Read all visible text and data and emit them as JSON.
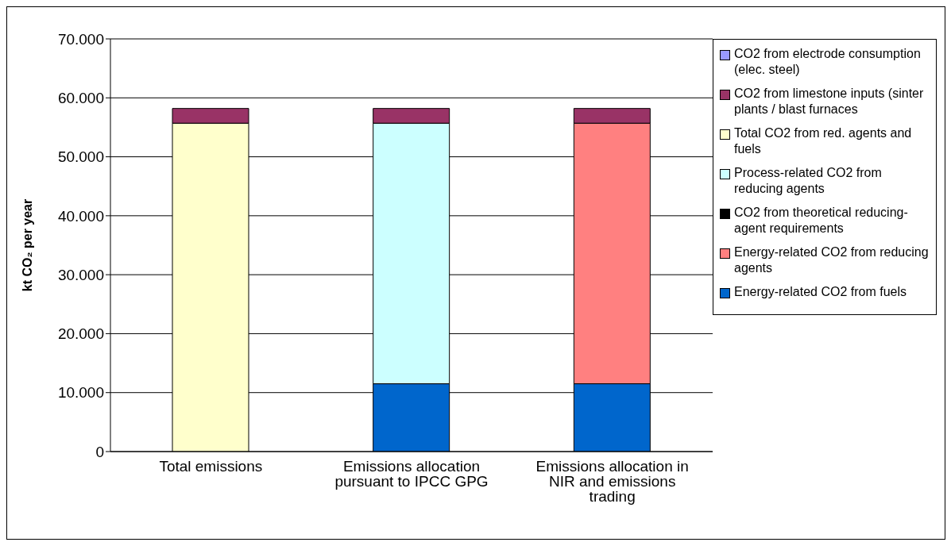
{
  "chart_data": {
    "type": "bar",
    "stacked": true,
    "ylabel": "kt CO₂  per year",
    "categories": [
      "Total emissions",
      "Emissions allocation pursuant to IPCC GPG",
      "Emissions allocation in NIR and emissions trading"
    ],
    "series": [
      {
        "name": "Energy-related CO2 from fuels",
        "color": "#0066cc",
        "values": [
          null,
          11500,
          11500
        ]
      },
      {
        "name": "Energy-related CO2 from reducing agents",
        "color": "#ff8080",
        "values": [
          null,
          null,
          44200
        ]
      },
      {
        "name": "CO2 from theoretical reducing-agent requirements",
        "color": "#000000",
        "values": [
          null,
          null,
          null
        ]
      },
      {
        "name": "Process-related CO2 from reducing agents",
        "color": "#ccffff",
        "values": [
          null,
          44200,
          null
        ]
      },
      {
        "name": "Total CO2 from red. agents and fuels",
        "color": "#ffffcc",
        "values": [
          55700,
          null,
          null
        ]
      },
      {
        "name": "CO2 from limestone inputs (sinter plants / blast furnaces",
        "color": "#993366",
        "values": [
          2500,
          2500,
          2500
        ]
      },
      {
        "name": "CO2 from electrode consumption (elec. steel)",
        "color": "#9999ff",
        "values": [
          null,
          null,
          null
        ]
      }
    ],
    "ylim": [
      0,
      70000
    ],
    "yticks": [
      {
        "value": 0,
        "label": "0"
      },
      {
        "value": 10000,
        "label": "10.000"
      },
      {
        "value": 20000,
        "label": "20.000"
      },
      {
        "value": 30000,
        "label": "30.000"
      },
      {
        "value": 40000,
        "label": "40.000"
      },
      {
        "value": 50000,
        "label": "50.000"
      },
      {
        "value": 60000,
        "label": "60.000"
      },
      {
        "value": 70000,
        "label": "70.000"
      }
    ],
    "grid": "y",
    "legend": "right"
  }
}
